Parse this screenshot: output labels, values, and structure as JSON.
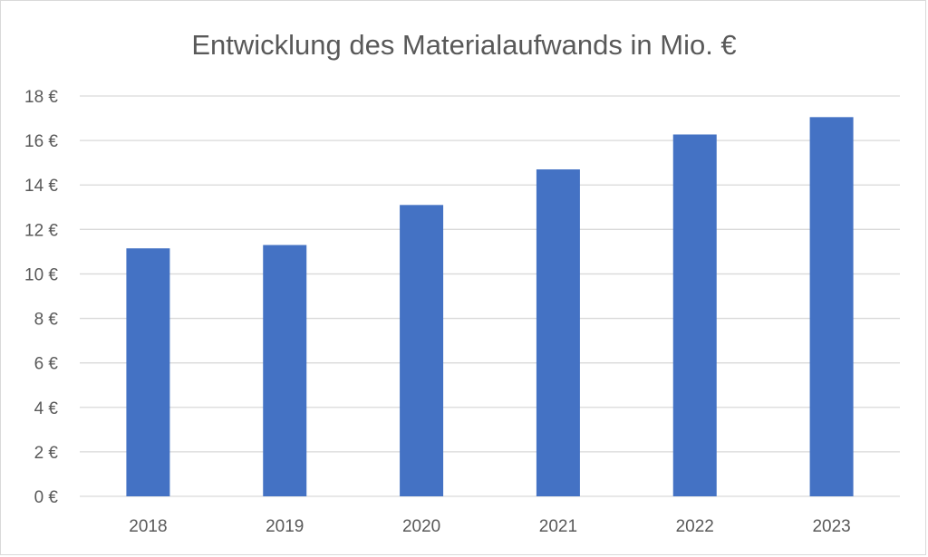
{
  "chart_data": {
    "type": "bar",
    "title": "Entwicklung des Materialaufwands in Mio. €",
    "xlabel": "",
    "ylabel": "",
    "categories": [
      "2018",
      "2019",
      "2020",
      "2021",
      "2022",
      "2023"
    ],
    "values": [
      11.15,
      11.3,
      13.1,
      14.7,
      16.27,
      17.05
    ],
    "ylim": [
      0,
      18
    ],
    "yticks": [
      0,
      2,
      4,
      6,
      8,
      10,
      12,
      14,
      16,
      18
    ],
    "ytick_labels": [
      "0 €",
      "2 €",
      "4 €",
      "6 €",
      "8 €",
      "10 €",
      "12 €",
      "14 €",
      "16 €",
      "18 €"
    ],
    "grid": true,
    "legend": "none",
    "bar_color": "#4472C4"
  }
}
